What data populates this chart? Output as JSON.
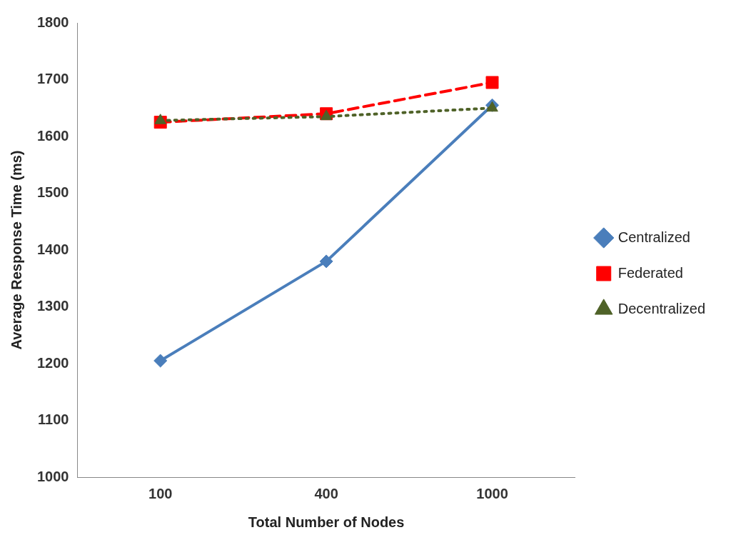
{
  "chart_data": {
    "type": "line",
    "xlabel": "Total Number of Nodes",
    "ylabel": "Average Response Time (ms)",
    "categories": [
      "100",
      "400",
      "1000"
    ],
    "ylim": [
      1000,
      1800
    ],
    "yticks": [
      1000,
      1100,
      1200,
      1300,
      1400,
      1500,
      1600,
      1700,
      1800
    ],
    "grid": false,
    "legend": "right",
    "series": [
      {
        "name": "Centralized",
        "color": "#4a7ebb",
        "values": [
          1205,
          1380,
          1655
        ],
        "marker": "diamond",
        "line_style": "solid"
      },
      {
        "name": "Federated",
        "color": "#ff0000",
        "values": [
          1625,
          1640,
          1695
        ],
        "marker": "square",
        "line_style": "dashed"
      },
      {
        "name": "Decentralized",
        "color": "#4f6228",
        "values": [
          1628,
          1635,
          1650
        ],
        "marker": "triangle",
        "line_style": "dotted"
      }
    ]
  }
}
